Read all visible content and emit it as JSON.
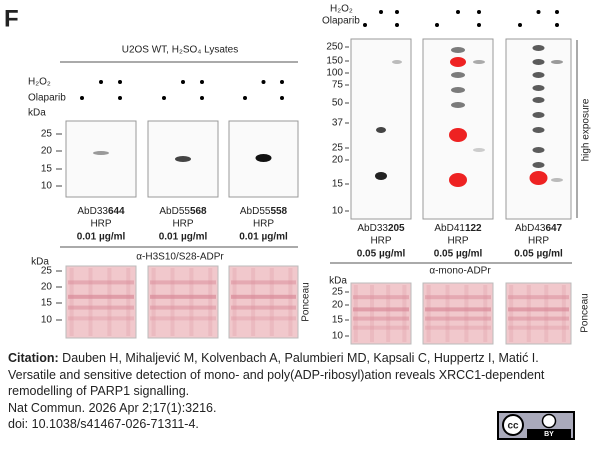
{
  "panel_label": "F",
  "left": {
    "title": "U2OS WT, H₂SO₄ Lysates",
    "treatments": [
      "H₂O₂",
      "Olaparib"
    ],
    "unit": "kDa",
    "ladder": [
      "25",
      "20",
      "15",
      "10"
    ],
    "blots": [
      {
        "clone_prefix": "AbD33",
        "clone_suffix": "644",
        "conjugate": "HRP",
        "concentration": "0.01 µg/ml"
      },
      {
        "clone_prefix": "AbD55",
        "clone_suffix": "568",
        "conjugate": "HRP",
        "concentration": "0.01 µg/ml"
      },
      {
        "clone_prefix": "AbD55",
        "clone_suffix": "558",
        "conjugate": "HRP",
        "concentration": "0.01 µg/ml"
      }
    ],
    "detection": "α-H3S10/S28-ADPr",
    "stain": {
      "unit": "kDa",
      "ladder": [
        "25",
        "20",
        "15",
        "10"
      ],
      "label": "Ponceau"
    }
  },
  "right": {
    "treatments": [
      "H₂O₂",
      "Olaparib"
    ],
    "ladder": [
      "250",
      "150",
      "100",
      "75",
      "50",
      "37",
      "25",
      "20",
      "15",
      "10"
    ],
    "exposure": "high exposure",
    "blots": [
      {
        "clone_prefix": "AbD33",
        "clone_suffix": "205",
        "conjugate": "HRP",
        "concentration": "0.05 µg/ml"
      },
      {
        "clone_prefix": "AbD41",
        "clone_suffix": "122",
        "conjugate": "HRP",
        "concentration": "0.05 µg/ml"
      },
      {
        "clone_prefix": "AbD43",
        "clone_suffix": "647",
        "conjugate": "HRP",
        "concentration": "0.05 µg/ml"
      }
    ],
    "detection": "α-mono-ADPr",
    "stain": {
      "unit": "kDa",
      "ladder": [
        "25",
        "20",
        "15",
        "10"
      ],
      "label": "Ponceau"
    }
  },
  "citation": {
    "label": "Citation:",
    "authors": "Dauben H, Mihaljević M, Kolvenbach A, Palumbieri MD, Kapsali C, Huppertz I, Matić I.",
    "title": "Versatile and sensitive detection of mono- and poly(ADP-ribosyl)ation reveals XRCC1-dependent remodelling of PARP1 signalling.",
    "journal": "Nat Commun. 2026 Apr 2;17(1):3216.",
    "doi": "doi: 10.1038/s41467-026-71311-4."
  },
  "license": {
    "icon": "cc",
    "label": "BY"
  }
}
